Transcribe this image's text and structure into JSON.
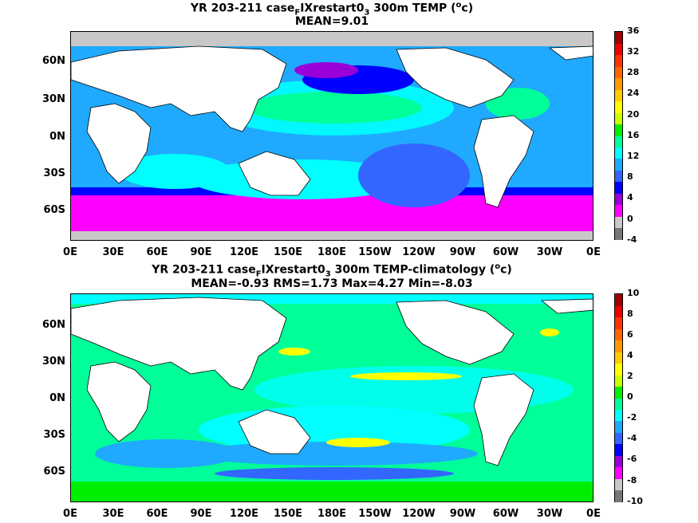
{
  "panels": [
    {
      "title_line1": {
        "pre": "YR 203-211 case",
        "sub1": "F",
        "mid": "IXrestart0",
        "sub2": "3",
        "post1": " 300m TEMP (",
        "sup": "o",
        "post2": "c)"
      },
      "title_line2": "MEAN=9.01",
      "yticks": [
        "60N",
        "30N",
        "0N",
        "30S",
        "60S"
      ],
      "xticks": [
        "0E",
        "30E",
        "60E",
        "90E",
        "120E",
        "150E",
        "180E",
        "150W",
        "120W",
        "90W",
        "60W",
        "30W",
        "0E"
      ],
      "colorbar_ticks": [
        "36",
        "32",
        "28",
        "24",
        "20",
        "16",
        "12",
        "8",
        "4",
        "0",
        "-4"
      ],
      "colorbar_colors": [
        "#777777",
        "#c8c8c8",
        "#ff00ff",
        "#9a00d8",
        "#0000ff",
        "#3366ff",
        "#1faaff",
        "#00ffff",
        "#00ff99",
        "#00ee00",
        "#c8ff00",
        "#ffff00",
        "#ffcc00",
        "#ff9900",
        "#ff6600",
        "#ff3300",
        "#ee0000",
        "#a00000"
      ]
    },
    {
      "title_line1": {
        "pre": "YR 203-211 case",
        "sub1": "F",
        "mid": "IXrestart0",
        "sub2": "3",
        "post1": " 300m TEMP-climatology (",
        "sup": "o",
        "post2": "c)"
      },
      "title_line2": "MEAN=-0.93   RMS=1.73   Max=4.27   Min=-8.03",
      "yticks": [
        "60N",
        "30N",
        "0N",
        "30S",
        "60S"
      ],
      "xticks": [
        "0E",
        "30E",
        "60E",
        "90E",
        "120E",
        "150E",
        "180E",
        "150W",
        "120W",
        "90W",
        "60W",
        "30W",
        "0E"
      ],
      "colorbar_ticks": [
        "10",
        "8",
        "6",
        "4",
        "2",
        "0",
        "-2",
        "-4",
        "-6",
        "-8",
        "-10"
      ],
      "colorbar_colors": [
        "#777777",
        "#c8c8c8",
        "#ff00ff",
        "#9a00d8",
        "#0000ff",
        "#3366ff",
        "#1faaff",
        "#00ffff",
        "#00ff99",
        "#00ee00",
        "#c8ff00",
        "#ffff00",
        "#ffcc00",
        "#ff9900",
        "#ff6600",
        "#ff3300",
        "#ee0000",
        "#a00000"
      ]
    }
  ]
}
